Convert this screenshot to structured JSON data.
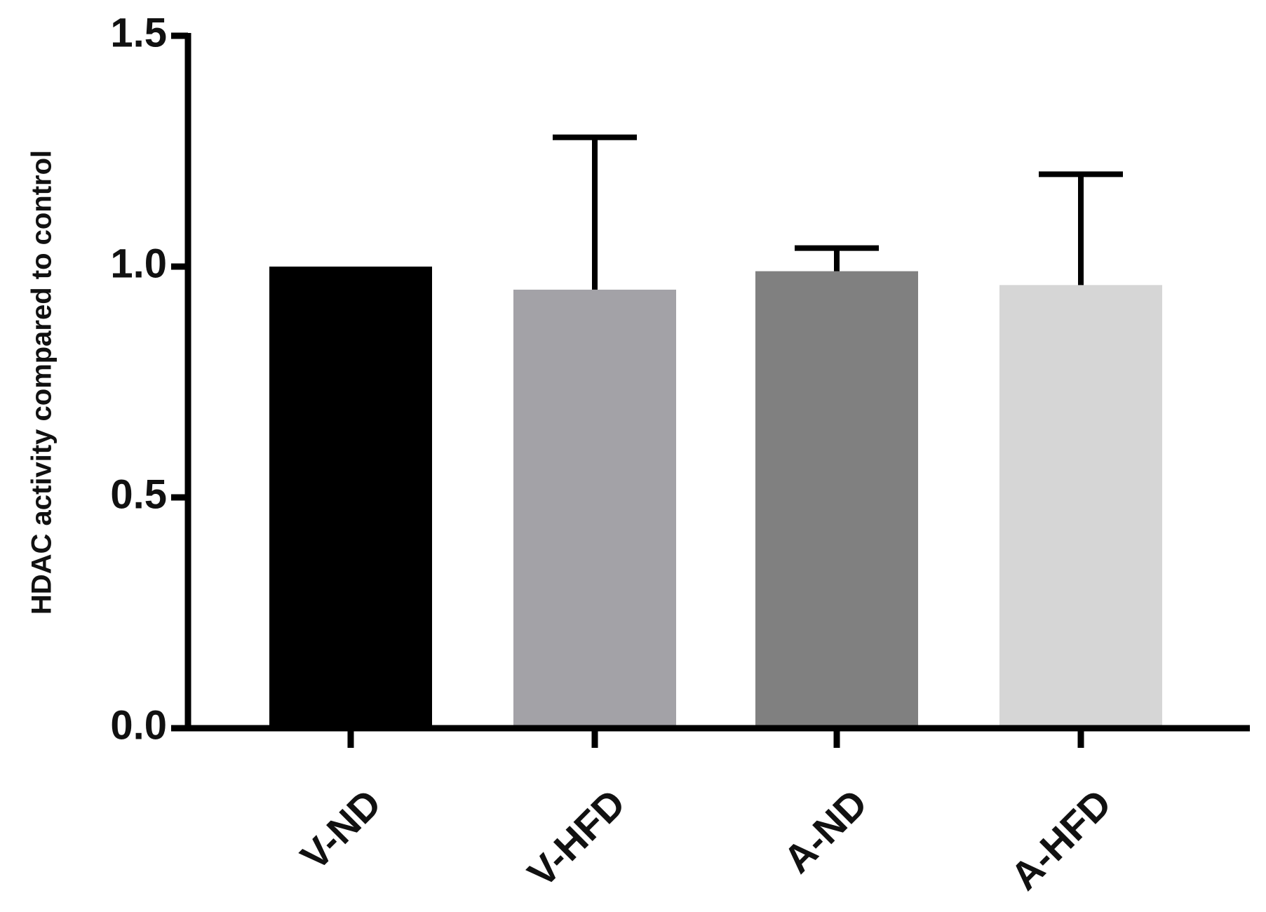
{
  "chart_data": {
    "type": "bar",
    "y_label": "HDAC activity compared to control",
    "categories": [
      "V-ND",
      "V-HFD",
      "A-ND",
      "A-HFD"
    ],
    "values": [
      1.0,
      0.95,
      0.99,
      0.96
    ],
    "errors": [
      0,
      0.33,
      0.05,
      0.24
    ],
    "colors": [
      "#000000",
      "#a3a2a7",
      "#808080",
      "#d6d6d6"
    ],
    "ylim": [
      0,
      1.5
    ],
    "yticks": [
      {
        "value": 0,
        "label": "0.0"
      },
      {
        "value": 0.5,
        "label": "0.5"
      },
      {
        "value": 1,
        "label": "1.0"
      },
      {
        "value": 1.5,
        "label": "1.5"
      }
    ]
  }
}
